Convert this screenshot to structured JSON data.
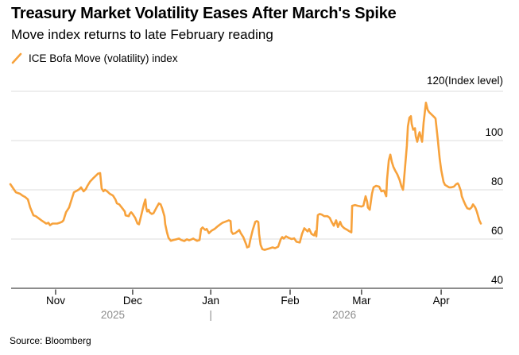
{
  "header": {
    "title": "Treasury Market Volatility Eases After March's Spike",
    "subtitle": "Move index returns to late February reading"
  },
  "legend": {
    "series_label": "ICE Bofa Move (volatility) index",
    "marker_color": "#F7A23C"
  },
  "footer": {
    "source": "Source: Bloomberg"
  },
  "colors": {
    "line": "#F7A23C",
    "gridline": "#DDDDDD",
    "axis": "#1A1A1A",
    "tick_mark": "#2B2B2B",
    "year_text": "#8C8C8C",
    "text": "#000000",
    "background": "#FFFFFF"
  },
  "chart_data": {
    "type": "line",
    "title": "Treasury Market Volatility Eases After March's Spike",
    "subtitle": "Move index returns to late February reading",
    "grid": true,
    "legend_position": "top-left",
    "x_unit": "days (day 0 = mid-October 2025, chart spans late Oct 2025 to mid-April 2026)",
    "y_axis": {
      "min": 40,
      "max": 120,
      "side": "right",
      "labels": [
        40,
        60,
        80,
        100
      ],
      "gridlines": [
        60,
        80,
        100,
        120
      ],
      "top_label": "120(Index level)"
    },
    "x_axis": {
      "ticks": [
        {
          "label": "Nov",
          "day": 17.8
        },
        {
          "label": "Dec",
          "day": 48.1
        },
        {
          "label": "Jan",
          "day": 78.8
        },
        {
          "label": "Feb",
          "day": 110
        },
        {
          "label": "Mar",
          "day": 138.1
        },
        {
          "label": "Apr",
          "day": 169.4
        }
      ],
      "year_labels": [
        {
          "label": "2025",
          "day": 40.3
        },
        {
          "label": "|",
          "day": 78.8
        },
        {
          "label": "2026",
          "day": 131.3
        }
      ]
    },
    "series": [
      {
        "name": "ICE Bofa Move (volatility) index",
        "color": "#F7A23C",
        "points": [
          [
            0,
            82.3
          ],
          [
            2.2,
            79
          ],
          [
            3.8,
            78.4
          ],
          [
            4.7,
            77.7
          ],
          [
            5.9,
            77
          ],
          [
            6.9,
            76.1
          ],
          [
            7.8,
            72.8
          ],
          [
            9.1,
            69.6
          ],
          [
            10,
            69.3
          ],
          [
            10.9,
            68.6
          ],
          [
            12.2,
            67.6
          ],
          [
            13.1,
            67
          ],
          [
            14.1,
            66.3
          ],
          [
            15,
            66.6
          ],
          [
            15.6,
            65.6
          ],
          [
            16.6,
            66.3
          ],
          [
            18.4,
            66.3
          ],
          [
            19.4,
            66.6
          ],
          [
            20.3,
            67
          ],
          [
            20.9,
            67.6
          ],
          [
            21.9,
            70.9
          ],
          [
            23.1,
            72.8
          ],
          [
            24.1,
            76.1
          ],
          [
            25,
            79
          ],
          [
            26.3,
            79.7
          ],
          [
            27.2,
            80.3
          ],
          [
            27.8,
            81
          ],
          [
            28.8,
            79.4
          ],
          [
            29.7,
            80.3
          ],
          [
            30.3,
            81.6
          ],
          [
            31.3,
            83.3
          ],
          [
            32.5,
            84.6
          ],
          [
            33.4,
            85.5
          ],
          [
            34.4,
            86.5
          ],
          [
            35.3,
            86.8
          ],
          [
            35.9,
            80.6
          ],
          [
            36.6,
            79.4
          ],
          [
            37.2,
            80
          ],
          [
            38.1,
            79.4
          ],
          [
            39.1,
            78.4
          ],
          [
            40.3,
            77.7
          ],
          [
            41.3,
            76.1
          ],
          [
            41.9,
            74.5
          ],
          [
            42.8,
            74.1
          ],
          [
            43.8,
            72.8
          ],
          [
            45,
            71.2
          ],
          [
            45.3,
            69.6
          ],
          [
            46.6,
            69.3
          ],
          [
            46.9,
            70.2
          ],
          [
            47.5,
            70.9
          ],
          [
            48.1,
            70.2
          ],
          [
            49.1,
            68.6
          ],
          [
            50,
            66.3
          ],
          [
            50.6,
            66
          ],
          [
            51.6,
            70.2
          ],
          [
            52.5,
            74.1
          ],
          [
            53.1,
            76.1
          ],
          [
            53.4,
            72.8
          ],
          [
            53.8,
            71.2
          ],
          [
            54.4,
            71.9
          ],
          [
            54.7,
            70.9
          ],
          [
            55.6,
            70.2
          ],
          [
            56.3,
            70.5
          ],
          [
            57.5,
            72.8
          ],
          [
            58.4,
            74.5
          ],
          [
            59.1,
            74.1
          ],
          [
            59.7,
            72.5
          ],
          [
            60.6,
            69.3
          ],
          [
            60.9,
            66
          ],
          [
            61.6,
            62.7
          ],
          [
            62.2,
            60.5
          ],
          [
            63.1,
            59.3
          ],
          [
            64.1,
            59.6
          ],
          [
            65.3,
            59.9
          ],
          [
            66.3,
            60.2
          ],
          [
            67.2,
            59.6
          ],
          [
            68.4,
            59.2
          ],
          [
            69.4,
            59.9
          ],
          [
            70.3,
            59.5
          ],
          [
            71.3,
            59.9
          ],
          [
            71.9,
            60.2
          ],
          [
            72.8,
            59.6
          ],
          [
            73.4,
            59.3
          ],
          [
            74.4,
            59.6
          ],
          [
            75,
            64.1
          ],
          [
            75.6,
            64.7
          ],
          [
            76.6,
            63.7
          ],
          [
            77.2,
            64.1
          ],
          [
            78.1,
            62.4
          ],
          [
            79.1,
            63.4
          ],
          [
            80.3,
            64.1
          ],
          [
            81.3,
            65
          ],
          [
            82.2,
            65.7
          ],
          [
            83.4,
            66.6
          ],
          [
            84.4,
            67
          ],
          [
            85.9,
            67.6
          ],
          [
            86.6,
            67.3
          ],
          [
            86.9,
            63.1
          ],
          [
            87.5,
            62.1
          ],
          [
            88.4,
            62.4
          ],
          [
            89.7,
            63.4
          ],
          [
            90,
            63.7
          ],
          [
            90.6,
            62.4
          ],
          [
            91.6,
            60.8
          ],
          [
            92.8,
            57.6
          ],
          [
            93.1,
            56.6
          ],
          [
            93.8,
            56.9
          ],
          [
            94.4,
            59.9
          ],
          [
            95.3,
            63.7
          ],
          [
            96.3,
            67
          ],
          [
            96.9,
            67.3
          ],
          [
            97.5,
            66.9
          ],
          [
            97.8,
            62.1
          ],
          [
            98.4,
            57.6
          ],
          [
            99.1,
            55.9
          ],
          [
            100,
            55.6
          ],
          [
            100.9,
            55.9
          ],
          [
            102.2,
            56.3
          ],
          [
            103.1,
            56.6
          ],
          [
            104.1,
            56.3
          ],
          [
            105.3,
            56.9
          ],
          [
            106.3,
            59.9
          ],
          [
            106.9,
            60.8
          ],
          [
            107.5,
            60.2
          ],
          [
            108.4,
            61.1
          ],
          [
            109.4,
            60.5
          ],
          [
            110.6,
            60
          ],
          [
            111.6,
            60.3
          ],
          [
            112.5,
            58.9
          ],
          [
            113.8,
            58.6
          ],
          [
            114.7,
            62.1
          ],
          [
            115.6,
            64.4
          ],
          [
            116.9,
            63.1
          ],
          [
            117.5,
            64.1
          ],
          [
            118.4,
            62.1
          ],
          [
            119.4,
            61.5
          ],
          [
            120,
            63.1
          ],
          [
            120.3,
            61.1
          ],
          [
            120.9,
            69.7
          ],
          [
            121.6,
            70.2
          ],
          [
            122.5,
            69.9
          ],
          [
            123.4,
            69.3
          ],
          [
            124.7,
            69.3
          ],
          [
            125.6,
            68.6
          ],
          [
            126.3,
            67
          ],
          [
            127.2,
            65.4
          ],
          [
            128.1,
            67.6
          ],
          [
            128.8,
            64.9
          ],
          [
            129.7,
            67
          ],
          [
            130.3,
            65.4
          ],
          [
            131.3,
            64.4
          ],
          [
            132.5,
            63.7
          ],
          [
            133.4,
            63.1
          ],
          [
            134.1,
            62.7
          ],
          [
            134.4,
            73.5
          ],
          [
            135.6,
            73.8
          ],
          [
            136.6,
            73.5
          ],
          [
            138.1,
            73.2
          ],
          [
            138.8,
            73.5
          ],
          [
            139.7,
            77.4
          ],
          [
            140.3,
            75.1
          ],
          [
            140.6,
            72.8
          ],
          [
            141.3,
            71.9
          ],
          [
            142.2,
            78.4
          ],
          [
            142.8,
            81
          ],
          [
            143.8,
            81.6
          ],
          [
            145,
            81.3
          ],
          [
            145.9,
            79.4
          ],
          [
            146.9,
            79.7
          ],
          [
            147.8,
            77.4
          ],
          [
            148.1,
            83.9
          ],
          [
            148.8,
            92
          ],
          [
            149.4,
            94.3
          ],
          [
            150,
            91.4
          ],
          [
            150.6,
            89.4
          ],
          [
            151.3,
            87.8
          ],
          [
            152.2,
            86.2
          ],
          [
            153.1,
            83.9
          ],
          [
            153.8,
            81.3
          ],
          [
            154.4,
            80
          ],
          [
            154.7,
            82.9
          ],
          [
            155.9,
            97.9
          ],
          [
            156.3,
            105.7
          ],
          [
            156.9,
            109.3
          ],
          [
            157.5,
            109.9
          ],
          [
            157.8,
            106.7
          ],
          [
            158.4,
            104.4
          ],
          [
            159.1,
            105
          ],
          [
            159.4,
            101.8
          ],
          [
            160,
            99.5
          ],
          [
            160.6,
            102.4
          ],
          [
            160.9,
            103.4
          ],
          [
            161.9,
            99.5
          ],
          [
            162.5,
            107.3
          ],
          [
            163.4,
            115.4
          ],
          [
            164.1,
            112.5
          ],
          [
            164.7,
            111.5
          ],
          [
            165.6,
            110.6
          ],
          [
            166.3,
            109.9
          ],
          [
            166.9,
            109.3
          ],
          [
            167.2,
            108.9
          ],
          [
            168.1,
            100.2
          ],
          [
            168.8,
            92.7
          ],
          [
            169.4,
            88.1
          ],
          [
            170.3,
            83.3
          ],
          [
            170.9,
            82
          ],
          [
            172.5,
            81
          ],
          [
            173.4,
            81
          ],
          [
            174.4,
            81.3
          ],
          [
            175.3,
            82.3
          ],
          [
            175.9,
            82.6
          ],
          [
            176.3,
            82
          ],
          [
            177.2,
            79.4
          ],
          [
            177.5,
            77.4
          ],
          [
            178.4,
            75.1
          ],
          [
            179.1,
            73.5
          ],
          [
            179.7,
            72.5
          ],
          [
            180.6,
            72.2
          ],
          [
            181.3,
            72.8
          ],
          [
            181.9,
            74.1
          ],
          [
            182.8,
            72.8
          ],
          [
            183.4,
            71.2
          ],
          [
            184.4,
            67.6
          ],
          [
            185,
            66.3
          ]
        ]
      }
    ]
  }
}
